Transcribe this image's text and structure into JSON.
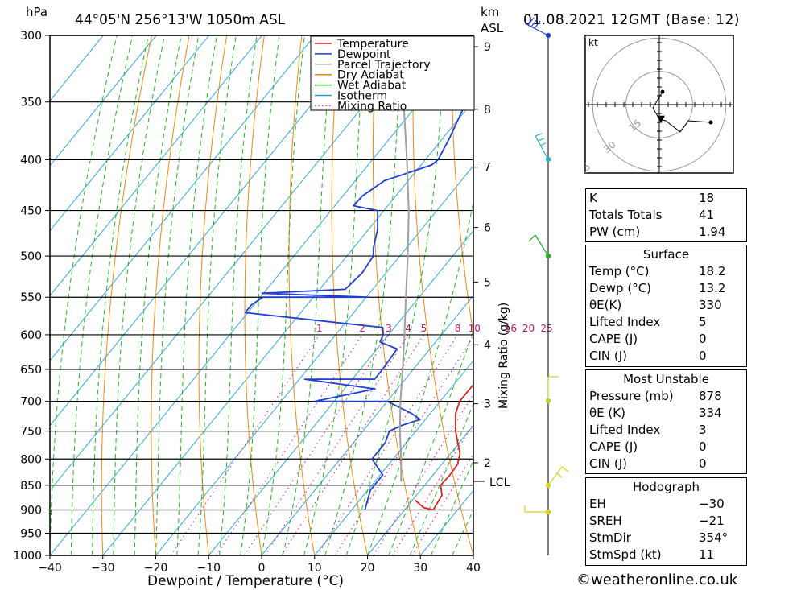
{
  "header": {
    "units_left": "hPa",
    "location": "44°05'N  256°13'W  1050m  ASL",
    "units_km": "km",
    "units_asl": "ASL",
    "datetime": "01.08.2021  12GMT  (Base: 12)"
  },
  "xaxis": {
    "title": "Dewpoint / Temperature (°C)",
    "ticks": [
      "−40",
      "−30",
      "−20",
      "−10",
      "0",
      "10",
      "20",
      "30",
      "40"
    ]
  },
  "yaxis": {
    "ticks": [
      "300",
      "350",
      "400",
      "450",
      "500",
      "550",
      "600",
      "650",
      "700",
      "750",
      "800",
      "850",
      "900",
      "950",
      "1000"
    ]
  },
  "km_axis": {
    "ticks": [
      "9",
      "8",
      "7",
      "6",
      "5",
      "4",
      "3",
      "2"
    ],
    "lcl_label": "LCL"
  },
  "mixing_axis": {
    "title": "Mixing Ratio (g/kg)",
    "labels": [
      "1",
      "2",
      "3",
      "4",
      "5",
      "8",
      "10",
      "16",
      "20",
      "25"
    ]
  },
  "legend": {
    "items": [
      {
        "label": "Temperature",
        "color": "#e02020",
        "style": "solid"
      },
      {
        "label": "Dewpoint",
        "color": "#1f3fd0",
        "style": "solid"
      },
      {
        "label": "Parcel Trajectory",
        "color": "#a0a0a0",
        "style": "solid"
      },
      {
        "label": "Dry Adiabat",
        "color": "#f08000",
        "style": "solid"
      },
      {
        "label": "Wet Adiabat",
        "color": "#20b020",
        "style": "solid"
      },
      {
        "label": "Isotherm",
        "color": "#20a0e0",
        "style": "solid"
      },
      {
        "label": "Mixing Ratio",
        "color": "#e020a0",
        "style": "dotted"
      }
    ]
  },
  "hodograph": {
    "unit": "kt",
    "ring_labels": [
      "15",
      "30",
      "45"
    ]
  },
  "indices": {
    "rows": [
      {
        "label": "K",
        "value": "18"
      },
      {
        "label": "Totals Totals",
        "value": "41"
      },
      {
        "label": "PW (cm)",
        "value": "1.94"
      }
    ]
  },
  "surface": {
    "title": "Surface",
    "rows": [
      {
        "label": "Temp (°C)",
        "value": "18.2"
      },
      {
        "label": "Dewp (°C)",
        "value": "13.2"
      },
      {
        "label": "θE(K)",
        "value": "330"
      },
      {
        "label": "Lifted Index",
        "value": "5"
      },
      {
        "label": "CAPE (J)",
        "value": "0"
      },
      {
        "label": "CIN (J)",
        "value": "0"
      }
    ]
  },
  "most_unstable": {
    "title": "Most Unstable",
    "rows": [
      {
        "label": "Pressure (mb)",
        "value": "878"
      },
      {
        "label": "θE (K)",
        "value": "334"
      },
      {
        "label": "Lifted Index",
        "value": "3"
      },
      {
        "label": "CAPE (J)",
        "value": "0"
      },
      {
        "label": "CIN (J)",
        "value": "0"
      }
    ]
  },
  "hodograph_stats": {
    "title": "Hodograph",
    "rows": [
      {
        "label": "EH",
        "value": "−30"
      },
      {
        "label": "SREH",
        "value": "−21"
      },
      {
        "label": "StmDir",
        "value": "354°"
      },
      {
        "label": "StmSpd (kt)",
        "value": "11"
      }
    ]
  },
  "copyright": "©weatheronline.co.uk",
  "chart_data": {
    "type": "line",
    "title": "44°05'N  256°13'W  1050m  ASL",
    "xlabel": "Dewpoint / Temperature (°C)",
    "ylabel": "hPa",
    "xlim": [
      -40,
      40
    ],
    "ylim": [
      1000,
      300
    ],
    "y_scale": "log",
    "skew": true,
    "series": [
      {
        "name": "Temperature",
        "color": "#e02020",
        "pressure": [
          880,
          895,
          900,
          870,
          850,
          830,
          810,
          790,
          750,
          720,
          700,
          680,
          650,
          600,
          570,
          550,
          530,
          500,
          470,
          450,
          420,
          400,
          380,
          360,
          340,
          320,
          300
        ],
        "temperature": [
          20.5,
          23.2,
          25.4,
          24.8,
          23.0,
          23.2,
          23.0,
          21.8,
          17.5,
          14.8,
          13.7,
          13.7,
          13.8,
          11.4,
          10.7,
          10.0,
          7.2,
          5.8,
          3.4,
          2.6,
          -0.4,
          -1.3,
          -3.2,
          -5.8,
          -8.8,
          -11.5,
          -13.8
        ]
      },
      {
        "name": "Dewpoint",
        "color": "#1f3fd0",
        "pressure": [
          900,
          860,
          830,
          800,
          770,
          750,
          740,
          730,
          720,
          700,
          700,
          680,
          665,
          665,
          650,
          620,
          610,
          600,
          590,
          570,
          560,
          550,
          550,
          545,
          540,
          520,
          500,
          490,
          470,
          450,
          445,
          435,
          420,
          405,
          400,
          380,
          340,
          330,
          305,
          300
        ],
        "temperature": [
          12.5,
          10.5,
          10.5,
          6.0,
          6.0,
          5.0,
          6.5,
          9.0,
          6.5,
          0.0,
          -13.7,
          -4.2,
          -19.0,
          -5.8,
          -5.8,
          -6.2,
          -10.5,
          -11.0,
          -12.2,
          -40.5,
          -40.5,
          -39.5,
          -19.7,
          -40.3,
          -25.2,
          -24.5,
          -25.0,
          -26.3,
          -28.3,
          -31.2,
          -36.5,
          -36.3,
          -34.5,
          -28.0,
          -27.6,
          -28.8,
          -32.0,
          -33.4,
          -32.8,
          -34.0
        ]
      },
      {
        "name": "Parcel Trajectory",
        "color": "#a0a0a0",
        "pressure": [
          843,
          800,
          750,
          700,
          650,
          600,
          550,
          500,
          450,
          400,
          350,
          300
        ],
        "temperature": [
          15.0,
          11.5,
          7.0,
          2.5,
          -2.0,
          -7.0,
          -12.5,
          -18.5,
          -25.3,
          -33.5,
          -43.0,
          -54.0
        ]
      }
    ],
    "mixing_ratio_lines_gkg": [
      1,
      2,
      3,
      4,
      5,
      8,
      10,
      16,
      20,
      25
    ],
    "lcl_pressure": 843,
    "hodograph_points_kt": [
      [
        2,
        8
      ],
      [
        -4,
        -2
      ],
      [
        0,
        -9
      ],
      [
        4,
        -10
      ],
      [
        13,
        -17
      ],
      [
        18,
        -10
      ],
      [
        32,
        -11
      ]
    ],
    "storm_motion": {
      "dir_deg": 354,
      "speed_kt": 11
    }
  }
}
